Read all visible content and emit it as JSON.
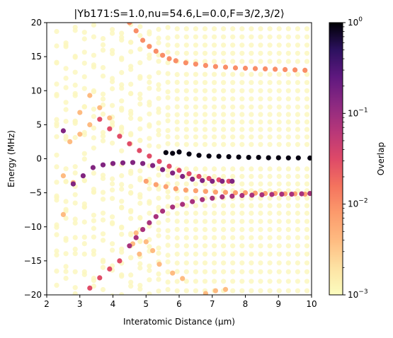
{
  "chart_data": {
    "type": "scatter",
    "title": "|Yb171:S=1.0,nu=54.6,L=0.0,F=3/2,3/2⟩",
    "xlabel": "Interatomic Distance (μm)",
    "ylabel": "Energy (MHz)",
    "xlim": [
      2,
      10
    ],
    "ylim": [
      -20,
      20
    ],
    "xticks": [
      "2",
      "3",
      "4",
      "5",
      "6",
      "7",
      "8",
      "9",
      "10"
    ],
    "yticks": [
      "−20",
      "−15",
      "−10",
      "−5",
      "0",
      "5",
      "10",
      "15",
      "20"
    ],
    "colorbar": {
      "label": "Overlap",
      "scale": "log",
      "range": [
        0.001,
        1
      ],
      "ticks": [
        {
          "base": "10",
          "exp": "0"
        },
        {
          "base": "10",
          "exp": "−1"
        },
        {
          "base": "10",
          "exp": "−2"
        },
        {
          "base": "10",
          "exp": "−3"
        }
      ],
      "colormap": "magma_r"
    },
    "marker_color_background": "#fcf7c0",
    "series": [
      {
        "points": [
          [
            5.6,
            0.9
          ],
          [
            5.8,
            0.8
          ],
          [
            6.0,
            1.0
          ],
          [
            6.3,
            0.7
          ],
          [
            6.6,
            0.5
          ],
          [
            6.9,
            0.4
          ],
          [
            7.2,
            0.35
          ],
          [
            7.5,
            0.3
          ],
          [
            7.8,
            0.25
          ],
          [
            8.1,
            0.2
          ],
          [
            8.4,
            0.2
          ],
          [
            8.7,
            0.15
          ],
          [
            9.0,
            0.15
          ],
          [
            9.3,
            0.12
          ],
          [
            9.6,
            0.12
          ],
          [
            9.95,
            0.1
          ]
        ],
        "overlap": 0.9
      },
      {
        "points": [
          [
            2.5,
            4.1
          ],
          [
            2.8,
            -3.7
          ],
          [
            3.1,
            -2.5
          ],
          [
            3.4,
            -1.3
          ],
          [
            3.7,
            -0.9
          ],
          [
            4.0,
            -0.7
          ],
          [
            4.3,
            -0.6
          ],
          [
            4.6,
            -0.55
          ],
          [
            4.9,
            -0.7
          ],
          [
            5.2,
            -1.0
          ],
          [
            5.5,
            -1.6
          ],
          [
            5.8,
            -2.1
          ],
          [
            6.1,
            -2.6
          ],
          [
            6.4,
            -3.0
          ],
          [
            6.7,
            -3.2
          ],
          [
            7.0,
            -3.3
          ],
          [
            7.3,
            -3.3
          ],
          [
            7.6,
            -3.3
          ]
        ],
        "overlap": 0.15
      },
      {
        "points": [
          [
            4.5,
            -12.8
          ],
          [
            4.7,
            -11.6
          ],
          [
            4.9,
            -10.4
          ],
          [
            5.1,
            -9.4
          ],
          [
            5.3,
            -8.5
          ],
          [
            5.5,
            -7.7
          ],
          [
            5.8,
            -7.1
          ],
          [
            6.1,
            -6.7
          ],
          [
            6.4,
            -6.3
          ],
          [
            6.7,
            -6.0
          ],
          [
            7.0,
            -5.8
          ],
          [
            7.3,
            -5.6
          ],
          [
            7.6,
            -5.5
          ],
          [
            7.9,
            -5.4
          ],
          [
            8.2,
            -5.35
          ],
          [
            8.5,
            -5.3
          ],
          [
            8.8,
            -5.25
          ],
          [
            9.1,
            -5.2
          ],
          [
            9.4,
            -5.2
          ],
          [
            9.7,
            -5.15
          ],
          [
            9.95,
            -5.1
          ]
        ],
        "overlap": 0.08
      },
      {
        "points": [
          [
            3.6,
            5.8
          ],
          [
            3.9,
            4.4
          ],
          [
            4.2,
            3.3
          ],
          [
            4.5,
            2.2
          ],
          [
            4.8,
            1.2
          ],
          [
            5.1,
            0.4
          ],
          [
            5.4,
            -0.4
          ],
          [
            5.7,
            -1.1
          ],
          [
            6.0,
            -1.7
          ],
          [
            6.3,
            -2.2
          ],
          [
            6.6,
            -2.6
          ],
          [
            6.9,
            -2.9
          ],
          [
            7.2,
            -3.1
          ],
          [
            7.5,
            -3.3
          ]
        ],
        "overlap": 0.03
      },
      {
        "points": [
          [
            4.5,
            20.0
          ],
          [
            4.7,
            18.8
          ],
          [
            4.9,
            17.4
          ],
          [
            5.1,
            16.5
          ],
          [
            5.3,
            15.8
          ],
          [
            5.5,
            15.2
          ],
          [
            5.7,
            14.7
          ],
          [
            5.9,
            14.4
          ],
          [
            6.2,
            14.1
          ],
          [
            6.5,
            13.9
          ],
          [
            6.8,
            13.7
          ],
          [
            7.1,
            13.55
          ],
          [
            7.4,
            13.45
          ],
          [
            7.7,
            13.35
          ],
          [
            8.0,
            13.3
          ],
          [
            8.3,
            13.25
          ],
          [
            8.6,
            13.2
          ],
          [
            8.9,
            13.15
          ],
          [
            9.2,
            13.1
          ],
          [
            9.5,
            13.05
          ],
          [
            9.8,
            13.0
          ]
        ],
        "overlap": 0.01
      },
      {
        "points": [
          [
            3.3,
            -19.0
          ],
          [
            3.6,
            -17.5
          ],
          [
            3.9,
            -16.2
          ],
          [
            4.2,
            -15.0
          ]
        ],
        "overlap": 0.03
      },
      {
        "points": [
          [
            5.0,
            -3.3
          ],
          [
            5.3,
            -3.8
          ],
          [
            5.6,
            -4.1
          ],
          [
            5.9,
            -4.4
          ],
          [
            6.2,
            -4.6
          ],
          [
            6.5,
            -4.7
          ],
          [
            6.8,
            -4.8
          ],
          [
            7.1,
            -4.9
          ],
          [
            7.4,
            -4.95
          ],
          [
            7.7,
            -5.0
          ],
          [
            8.0,
            -5.0
          ],
          [
            8.3,
            -5.05
          ],
          [
            8.6,
            -5.1
          ],
          [
            8.9,
            -5.1
          ],
          [
            9.2,
            -5.15
          ],
          [
            9.5,
            -5.15
          ],
          [
            9.8,
            -5.2
          ]
        ],
        "overlap": 0.007
      },
      {
        "points": [
          [
            3.3,
            9.3
          ],
          [
            3.6,
            7.5
          ],
          [
            3.9,
            6.0
          ],
          [
            3.0,
            6.8
          ],
          [
            3.3,
            5.0
          ],
          [
            3.0,
            3.6
          ],
          [
            2.7,
            2.5
          ],
          [
            2.5,
            -2.5
          ],
          [
            2.8,
            -3.5
          ],
          [
            2.5,
            -8.2
          ],
          [
            4.6,
            -12.5
          ],
          [
            4.8,
            -14.0
          ],
          [
            5.4,
            -15.5
          ],
          [
            5.8,
            -16.8
          ],
          [
            6.1,
            -17.6
          ],
          [
            6.8,
            -19.8
          ],
          [
            7.1,
            -19.4
          ],
          [
            7.4,
            -19.2
          ],
          [
            4.7,
            -10.9
          ],
          [
            5.0,
            -12.2
          ],
          [
            5.2,
            -13.5
          ]
        ],
        "overlap": 0.004
      }
    ]
  }
}
